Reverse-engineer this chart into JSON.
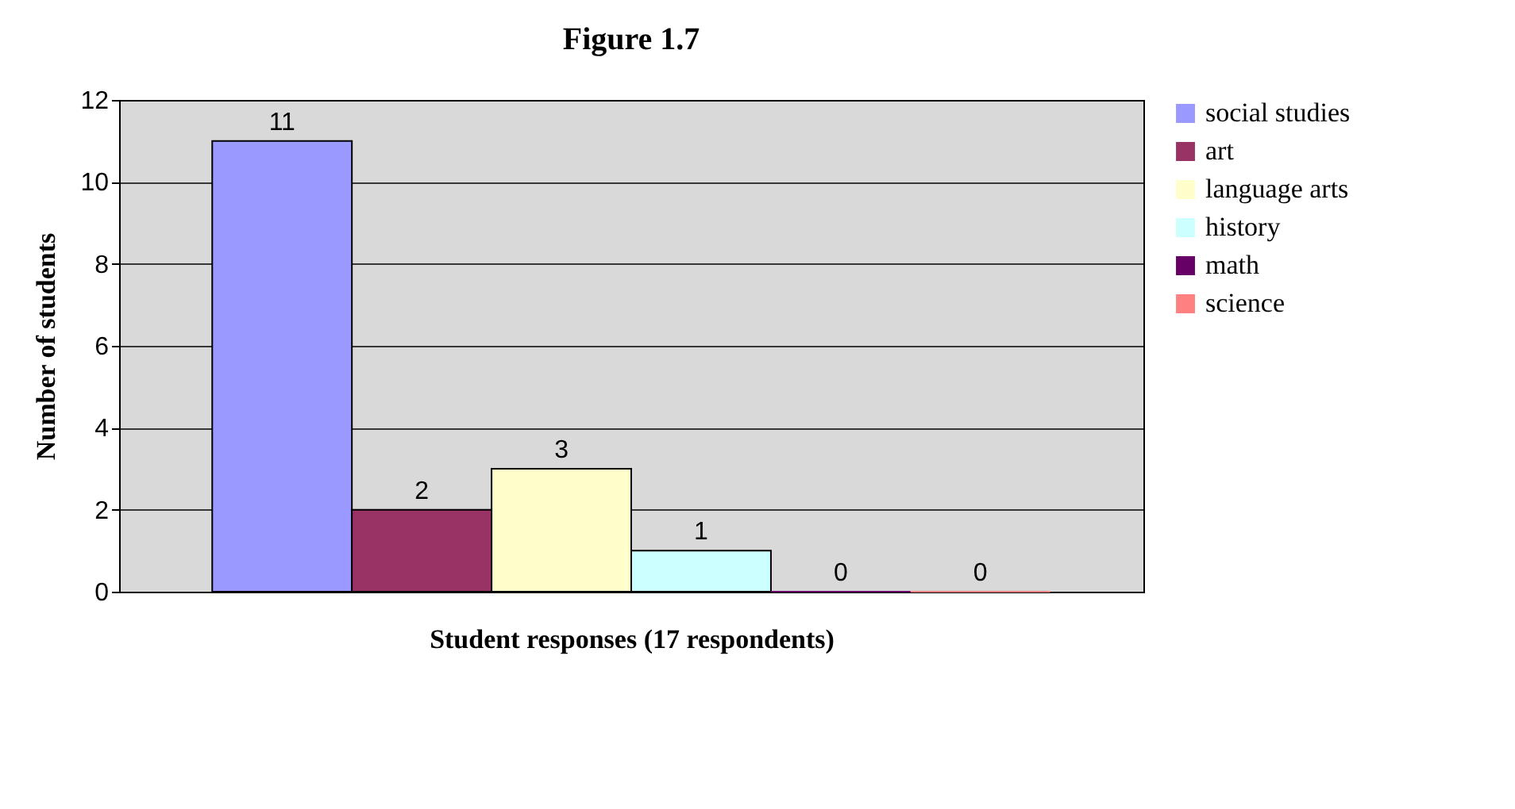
{
  "chart_data": {
    "type": "bar",
    "title": "Figure 1.7",
    "xlabel": "Student responses (17 respondents)",
    "ylabel": "Number of students",
    "categories": [
      null
    ],
    "series": [
      {
        "name": "social studies",
        "color": "#9999ff",
        "values": [
          11
        ]
      },
      {
        "name": "art",
        "color": "#993366",
        "values": [
          2
        ]
      },
      {
        "name": "language arts",
        "color": "#ffffcc",
        "values": [
          3
        ]
      },
      {
        "name": "history",
        "color": "#ccffff",
        "values": [
          1
        ]
      },
      {
        "name": "math",
        "color": "#660066",
        "values": [
          0
        ]
      },
      {
        "name": "science",
        "color": "#ff8080",
        "values": [
          0
        ]
      }
    ],
    "ylim": [
      0,
      12
    ],
    "yticks": [
      0,
      2,
      4,
      6,
      8,
      10,
      12
    ],
    "grid": "y",
    "legend": "right",
    "data_labels": true
  }
}
